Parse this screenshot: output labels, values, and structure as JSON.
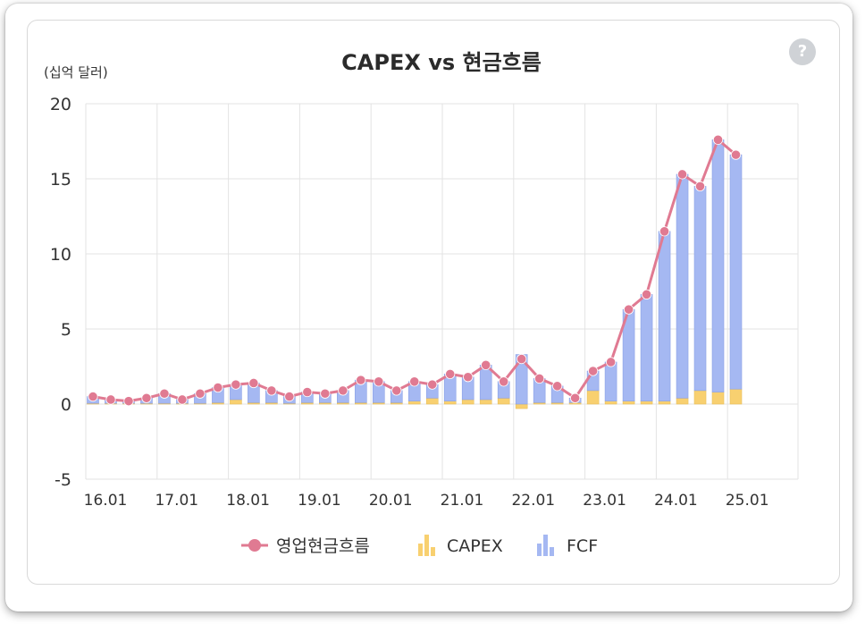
{
  "help_icon_text": "?",
  "colors": {
    "ocf_line": "#e07a92",
    "capex_bar": "#f8d070",
    "fcf_bar": "#a5b8f2",
    "fcf_bar_stroke": "#8aa0e6",
    "capex_bar_stroke": "#e8bf5a",
    "grid": "#e3e3e3"
  },
  "chart_data": {
    "type": "bar",
    "title": "CAPEX vs 현금흐름",
    "unit_label": "(십억 달러)",
    "ylim": [
      -5,
      20
    ],
    "yticks": [
      20,
      15,
      10,
      5,
      0,
      -5
    ],
    "xtick_labels": [
      "16.01",
      "17.01",
      "18.01",
      "19.01",
      "20.01",
      "21.01",
      "22.01",
      "23.01",
      "24.01",
      "25.01"
    ],
    "grid": true,
    "legend_placement": "bottom",
    "stacked": true,
    "series": [
      {
        "name": "영업현금흐름",
        "kind": "line",
        "icon": "line-dot-icon",
        "values": [
          0.5,
          0.3,
          0.2,
          0.4,
          0.7,
          0.3,
          0.7,
          1.1,
          1.3,
          1.4,
          0.9,
          0.5,
          0.8,
          0.7,
          0.9,
          1.6,
          1.5,
          0.9,
          1.5,
          1.3,
          2.0,
          1.8,
          2.6,
          1.5,
          3.0,
          1.7,
          1.2,
          0.4,
          2.2,
          2.8,
          6.3,
          7.3,
          11.5,
          15.3,
          14.5,
          17.6,
          16.6
        ]
      },
      {
        "name": "CAPEX",
        "kind": "bar",
        "icon": "bar-chart-icon",
        "values": [
          0.05,
          0.05,
          0.05,
          0.05,
          0.05,
          0.05,
          0.05,
          0.1,
          0.3,
          0.1,
          0.1,
          0.05,
          0.1,
          0.1,
          0.1,
          0.1,
          0.1,
          0.1,
          0.2,
          0.4,
          0.2,
          0.3,
          0.3,
          0.4,
          -0.3,
          0.1,
          0.1,
          0.1,
          0.9,
          0.2,
          0.2,
          0.2,
          0.2,
          0.4,
          0.9,
          0.8,
          1.0
        ]
      },
      {
        "name": "FCF",
        "kind": "bar",
        "icon": "bar-chart-icon",
        "values": [
          0.45,
          0.25,
          0.15,
          0.35,
          0.65,
          0.25,
          0.65,
          1.0,
          1.0,
          1.3,
          0.8,
          0.45,
          0.7,
          0.6,
          0.8,
          1.5,
          1.4,
          0.8,
          1.3,
          0.9,
          1.8,
          1.5,
          2.3,
          1.1,
          3.3,
          1.6,
          1.1,
          0.3,
          1.3,
          2.6,
          6.1,
          7.1,
          11.3,
          14.9,
          13.6,
          16.8,
          15.6
        ]
      }
    ]
  }
}
